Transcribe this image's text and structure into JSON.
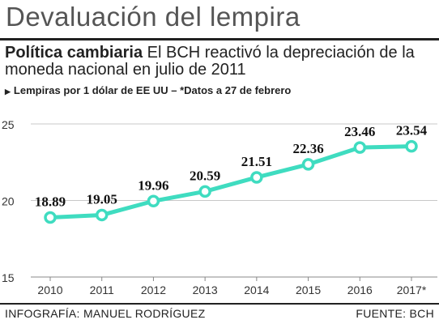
{
  "header": {
    "title": "Devaluación del lempira",
    "subtitle_bold": "Política cambiaria",
    "subtitle_rest": " El BCH reactivó la depreciación de la moneda nacional en julio de 2011",
    "note": "Lempiras por 1 dólar de EE UU – *Datos a 27 de febrero"
  },
  "footer": {
    "credit": "INFOGRAFÍA: MANUEL RODRÍGUEZ",
    "source": "FUENTE: BCH"
  },
  "chart_data": {
    "type": "line",
    "categories": [
      "2010",
      "2011",
      "2012",
      "2013",
      "2014",
      "2015",
      "2016",
      "2017*"
    ],
    "values": [
      18.89,
      19.05,
      19.96,
      20.59,
      21.51,
      22.36,
      23.46,
      23.54
    ],
    "value_labels": [
      "18.89",
      "19.05",
      "19.96",
      "20.59",
      "21.51",
      "22.36",
      "23.46",
      "23.54"
    ],
    "y_ticks": [
      "15",
      "20",
      "25"
    ],
    "ylim": [
      15,
      25
    ],
    "grid": "horizontal",
    "colors": {
      "line": "#3fdcc0",
      "grid": "#c8c8c8",
      "axis": "#888888"
    }
  }
}
